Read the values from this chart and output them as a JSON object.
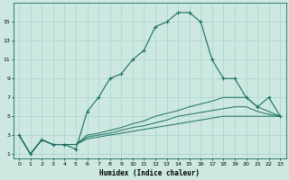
{
  "xlabel": "Humidex (Indice chaleur)",
  "x": [
    0,
    1,
    2,
    3,
    4,
    5,
    6,
    7,
    8,
    9,
    10,
    11,
    12,
    13,
    14,
    15,
    16,
    17,
    18,
    19,
    20,
    21,
    22,
    23
  ],
  "y_main": [
    3,
    1,
    2.5,
    2,
    2,
    1.5,
    5.5,
    7,
    9,
    9.5,
    11,
    12,
    14.5,
    15,
    16,
    16,
    15,
    11,
    9,
    9,
    7,
    6,
    7,
    5
  ],
  "y_line1": [
    3,
    1,
    2.5,
    2,
    2,
    2,
    3,
    3.2,
    3.5,
    3.8,
    4.2,
    4.5,
    5,
    5.3,
    5.6,
    6,
    6.3,
    6.6,
    7,
    7,
    7,
    6,
    5.5,
    5
  ],
  "y_line2": [
    3,
    1,
    2.5,
    2,
    2,
    2,
    2.8,
    3,
    3.2,
    3.5,
    3.8,
    4,
    4.3,
    4.6,
    5,
    5.2,
    5.4,
    5.6,
    5.8,
    6,
    6,
    5.5,
    5.2,
    5
  ],
  "y_line3": [
    3,
    1,
    2.5,
    2,
    2,
    2,
    2.6,
    2.8,
    3,
    3.2,
    3.4,
    3.6,
    3.8,
    4,
    4.2,
    4.4,
    4.6,
    4.8,
    5,
    5,
    5,
    5,
    5,
    5
  ],
  "bg_color": "#cce8e0",
  "line_color": "#1a6e62",
  "grid_color": "#aad4cc",
  "ylim": [
    0.5,
    17
  ],
  "xlim": [
    -0.5,
    23.5
  ],
  "yticks": [
    1,
    3,
    5,
    7,
    9,
    11,
    13,
    15
  ],
  "xticks": [
    0,
    1,
    2,
    3,
    4,
    5,
    6,
    7,
    8,
    9,
    10,
    11,
    12,
    13,
    14,
    15,
    16,
    17,
    18,
    19,
    20,
    21,
    22,
    23
  ]
}
